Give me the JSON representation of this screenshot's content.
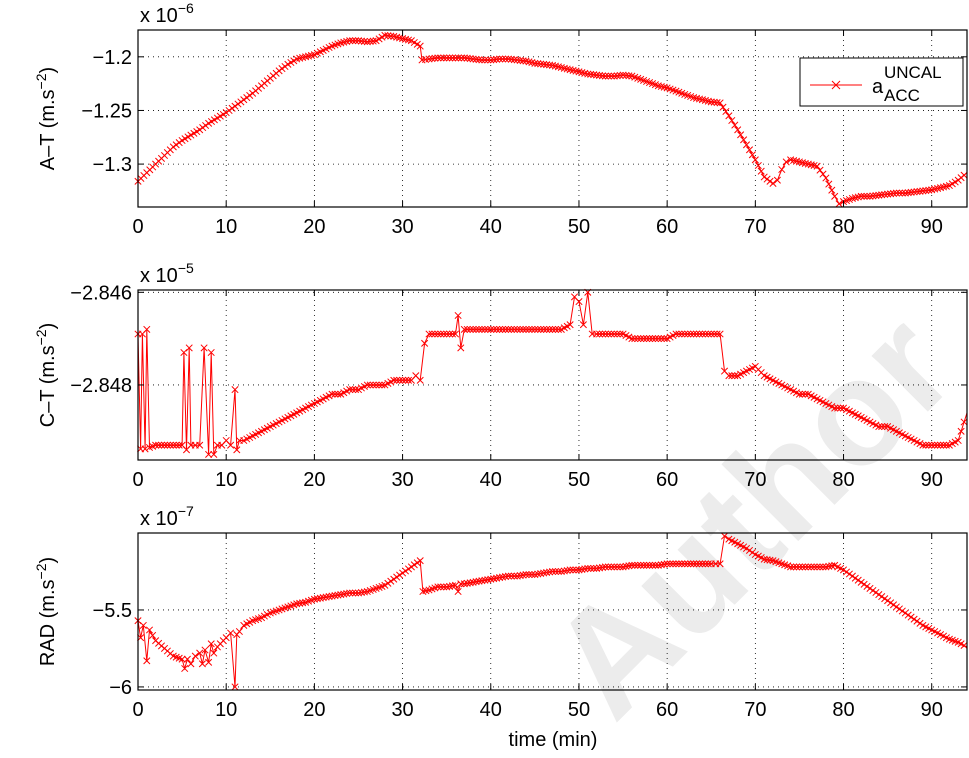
{
  "chart_data": [
    {
      "type": "line",
      "ylabel": "A–T (m.s",
      "ylabel_exp": "−2",
      "exponent_base": "x 10",
      "exponent": "−6",
      "xlim": [
        0,
        94
      ],
      "ylim": [
        -1.34,
        -1.175
      ],
      "xticks": [
        0,
        10,
        20,
        30,
        40,
        50,
        60,
        70,
        80,
        90
      ],
      "xtick_labels": [
        "0",
        "10",
        "20",
        "30",
        "40",
        "50",
        "60",
        "70",
        "80",
        "90"
      ],
      "yticks": [
        -1.3,
        -1.25,
        -1.2
      ],
      "ytick_labels": [
        "−1.3",
        "−1.25",
        "−1.2"
      ],
      "grid": true,
      "legend": {
        "placement": "top-right",
        "label": "a",
        "sup": "UNCAL",
        "sub": "ACC"
      },
      "series": [
        {
          "name": "a UNCAL ACC",
          "color": "#ff0000",
          "marker": "x",
          "x": [
            0,
            1,
            2,
            3,
            4,
            5,
            6,
            7,
            8,
            9,
            10,
            11,
            12,
            13,
            14,
            15,
            16,
            17,
            18,
            19,
            20,
            21,
            22,
            23,
            24,
            25,
            26,
            27,
            28,
            29,
            30,
            31,
            32,
            32.2,
            33,
            34,
            35,
            36,
            37,
            38,
            39,
            40,
            41,
            42,
            43,
            44,
            45,
            46,
            47,
            48,
            49,
            50,
            51,
            52,
            53,
            54,
            55,
            56,
            57,
            58,
            59,
            60,
            61,
            62,
            63,
            64,
            65,
            66,
            67,
            68,
            69,
            70,
            71,
            72,
            72.5,
            73,
            73.5,
            74,
            75,
            76,
            77,
            78,
            79,
            79.5,
            80,
            81,
            82,
            83,
            84,
            85,
            86,
            87,
            88,
            89,
            90,
            91,
            92,
            93,
            94
          ],
          "y": [
            -1.316,
            -1.308,
            -1.3,
            -1.292,
            -1.284,
            -1.278,
            -1.273,
            -1.268,
            -1.262,
            -1.257,
            -1.252,
            -1.246,
            -1.24,
            -1.234,
            -1.227,
            -1.22,
            -1.213,
            -1.207,
            -1.202,
            -1.2,
            -1.198,
            -1.194,
            -1.19,
            -1.187,
            -1.185,
            -1.185,
            -1.186,
            -1.185,
            -1.18,
            -1.181,
            -1.183,
            -1.185,
            -1.19,
            -1.203,
            -1.202,
            -1.201,
            -1.201,
            -1.201,
            -1.201,
            -1.202,
            -1.203,
            -1.203,
            -1.202,
            -1.202,
            -1.203,
            -1.204,
            -1.206,
            -1.207,
            -1.208,
            -1.21,
            -1.212,
            -1.214,
            -1.216,
            -1.217,
            -1.218,
            -1.218,
            -1.217,
            -1.218,
            -1.221,
            -1.224,
            -1.227,
            -1.229,
            -1.232,
            -1.235,
            -1.238,
            -1.24,
            -1.242,
            -1.243,
            -1.255,
            -1.268,
            -1.282,
            -1.296,
            -1.312,
            -1.318,
            -1.315,
            -1.305,
            -1.298,
            -1.296,
            -1.298,
            -1.3,
            -1.302,
            -1.313,
            -1.33,
            -1.337,
            -1.335,
            -1.332,
            -1.33,
            -1.33,
            -1.329,
            -1.328,
            -1.327,
            -1.327,
            -1.326,
            -1.325,
            -1.324,
            -1.322,
            -1.32,
            -1.315,
            -1.308
          ]
        }
      ]
    },
    {
      "type": "line",
      "ylabel": "C–T (m.s",
      "ylabel_exp": "−2",
      "exponent_base": "x 10",
      "exponent": "−5",
      "xlim": [
        0,
        94
      ],
      "ylim": [
        -2.84962,
        -2.84595
      ],
      "xticks": [
        0,
        10,
        20,
        30,
        40,
        50,
        60,
        70,
        80,
        90
      ],
      "xtick_labels": [
        "0",
        "10",
        "20",
        "30",
        "40",
        "50",
        "60",
        "70",
        "80",
        "90"
      ],
      "yticks": [
        -2.848,
        -2.846
      ],
      "ytick_labels": [
        "−2.848",
        "−2.846"
      ],
      "grid": true,
      "series": [
        {
          "name": "C-T",
          "color": "#ff0000",
          "marker": "x",
          "x": [
            0,
            0.3,
            0.5,
            0.8,
            1.0,
            1.3,
            2,
            3,
            4,
            5,
            5.2,
            5.5,
            5.8,
            6,
            6.5,
            7,
            7.5,
            8,
            8.3,
            8.6,
            9,
            9.5,
            10,
            10.5,
            11,
            11.2,
            11.5,
            12,
            13,
            14,
            15,
            16,
            17,
            18,
            19,
            20,
            21,
            22,
            23,
            24,
            25,
            26,
            27,
            28,
            29,
            30,
            31,
            31.5,
            32,
            32.5,
            33,
            34,
            35,
            36,
            36.3,
            36.6,
            37,
            38,
            39,
            40,
            41,
            42,
            43,
            44,
            45,
            46,
            47,
            48,
            49,
            49.5,
            50,
            50.5,
            51,
            51.5,
            52,
            53,
            54,
            55,
            56,
            57,
            58,
            59,
            60,
            61,
            62,
            63,
            64,
            65,
            66,
            66.5,
            67,
            68,
            69,
            70,
            71,
            72,
            73,
            74,
            75,
            76,
            77,
            78,
            79,
            80,
            81,
            82,
            83,
            84,
            85,
            86,
            87,
            88,
            89,
            90,
            91,
            92,
            93,
            94
          ],
          "y": [
            -2.8469,
            -2.84938,
            -2.8469,
            -2.84938,
            -2.8468,
            -2.84935,
            -2.8493,
            -2.8493,
            -2.8493,
            -2.8493,
            -2.8473,
            -2.8494,
            -2.8472,
            -2.8493,
            -2.8493,
            -2.8493,
            -2.8472,
            -2.8495,
            -2.8473,
            -2.8495,
            -2.8493,
            -2.8493,
            -2.8492,
            -2.8493,
            -2.8481,
            -2.8494,
            -2.8492,
            -2.8492,
            -2.8491,
            -2.849,
            -2.8489,
            -2.8488,
            -2.8487,
            -2.8486,
            -2.8485,
            -2.8484,
            -2.8483,
            -2.8482,
            -2.8482,
            -2.8481,
            -2.8481,
            -2.848,
            -2.848,
            -2.848,
            -2.8479,
            -2.8479,
            -2.8479,
            -2.8478,
            -2.8479,
            -2.8471,
            -2.8469,
            -2.8469,
            -2.8469,
            -2.8469,
            -2.8465,
            -2.8472,
            -2.8468,
            -2.8468,
            -2.8468,
            -2.8468,
            -2.8468,
            -2.8468,
            -2.8468,
            -2.8468,
            -2.8468,
            -2.8468,
            -2.8468,
            -2.8468,
            -2.8467,
            -2.8461,
            -2.8462,
            -2.8467,
            -2.846,
            -2.8469,
            -2.8469,
            -2.8469,
            -2.8469,
            -2.8469,
            -2.847,
            -2.847,
            -2.847,
            -2.847,
            -2.847,
            -2.8469,
            -2.8469,
            -2.8469,
            -2.8469,
            -2.8469,
            -2.8469,
            -2.8477,
            -2.8478,
            -2.8478,
            -2.8477,
            -2.8476,
            -2.8478,
            -2.8479,
            -2.848,
            -2.8481,
            -2.8482,
            -2.8482,
            -2.8483,
            -2.8484,
            -2.8485,
            -2.8485,
            -2.8486,
            -2.8487,
            -2.8488,
            -2.8489,
            -2.8489,
            -2.849,
            -2.8491,
            -2.8492,
            -2.8493,
            -2.8493,
            -2.8493,
            -2.8493,
            -2.8492,
            -2.8486
          ]
        }
      ]
    },
    {
      "type": "line",
      "ylabel": "RAD (m.s",
      "ylabel_exp": "−2",
      "exponent_base": "x 10",
      "exponent": "−7",
      "xlim": [
        0,
        94
      ],
      "ylim": [
        -6.02,
        -5.0
      ],
      "xticks": [
        0,
        10,
        20,
        30,
        40,
        50,
        60,
        70,
        80,
        90
      ],
      "xtick_labels": [
        "0",
        "10",
        "20",
        "30",
        "40",
        "50",
        "60",
        "70",
        "80",
        "90"
      ],
      "yticks": [
        -6,
        -5.5
      ],
      "ytick_labels": [
        "−6",
        "−5.5"
      ],
      "xlabel": "time (min)",
      "grid": true,
      "series": [
        {
          "name": "RAD",
          "color": "#ff0000",
          "marker": "x",
          "x": [
            0,
            0.3,
            0.6,
            1,
            1.3,
            2,
            3,
            4,
            5,
            5.3,
            5.6,
            6,
            6.5,
            7,
            7.3,
            7.6,
            8,
            8.3,
            8.6,
            9,
            10,
            10.5,
            11,
            11.2,
            11.5,
            12,
            13,
            14,
            15,
            16,
            17,
            18,
            19,
            20,
            21,
            22,
            23,
            24,
            25,
            26,
            27,
            28,
            29,
            30,
            31,
            32,
            32.3,
            33,
            34,
            35,
            36,
            36.3,
            36.6,
            37,
            38,
            39,
            40,
            41,
            42,
            43,
            44,
            45,
            46,
            47,
            48,
            49,
            50,
            51,
            52,
            53,
            54,
            55,
            56,
            57,
            58,
            59,
            60,
            61,
            62,
            63,
            64,
            65,
            65.5,
            66,
            66.5,
            67,
            68,
            69,
            70,
            71,
            72,
            73,
            74,
            75,
            76,
            77,
            78,
            79,
            80,
            81,
            82,
            83,
            84,
            85,
            86,
            87,
            88,
            89,
            90,
            91,
            92,
            93,
            94
          ],
          "y": [
            -5.57,
            -5.68,
            -5.6,
            -5.83,
            -5.63,
            -5.7,
            -5.75,
            -5.8,
            -5.82,
            -5.88,
            -5.82,
            -5.85,
            -5.8,
            -5.78,
            -5.85,
            -5.76,
            -5.84,
            -5.72,
            -5.78,
            -5.74,
            -5.68,
            -5.65,
            -6.0,
            -5.66,
            -5.64,
            -5.6,
            -5.57,
            -5.55,
            -5.52,
            -5.5,
            -5.48,
            -5.46,
            -5.45,
            -5.43,
            -5.42,
            -5.41,
            -5.4,
            -5.39,
            -5.39,
            -5.38,
            -5.36,
            -5.34,
            -5.3,
            -5.26,
            -5.22,
            -5.18,
            -5.38,
            -5.37,
            -5.35,
            -5.35,
            -5.34,
            -5.38,
            -5.33,
            -5.33,
            -5.32,
            -5.31,
            -5.3,
            -5.29,
            -5.28,
            -5.28,
            -5.27,
            -5.27,
            -5.26,
            -5.25,
            -5.25,
            -5.24,
            -5.24,
            -5.23,
            -5.23,
            -5.22,
            -5.22,
            -5.22,
            -5.21,
            -5.21,
            -5.21,
            -5.21,
            -5.2,
            -5.2,
            -5.2,
            -5.2,
            -5.2,
            -5.2,
            -5.2,
            -5.2,
            -5.02,
            -5.04,
            -5.07,
            -5.1,
            -5.14,
            -5.17,
            -5.18,
            -5.2,
            -5.22,
            -5.22,
            -5.22,
            -5.22,
            -5.22,
            -5.21,
            -5.24,
            -5.28,
            -5.32,
            -5.36,
            -5.4,
            -5.44,
            -5.48,
            -5.52,
            -5.56,
            -5.6,
            -5.63,
            -5.66,
            -5.69,
            -5.71,
            -5.74
          ]
        }
      ]
    }
  ]
}
